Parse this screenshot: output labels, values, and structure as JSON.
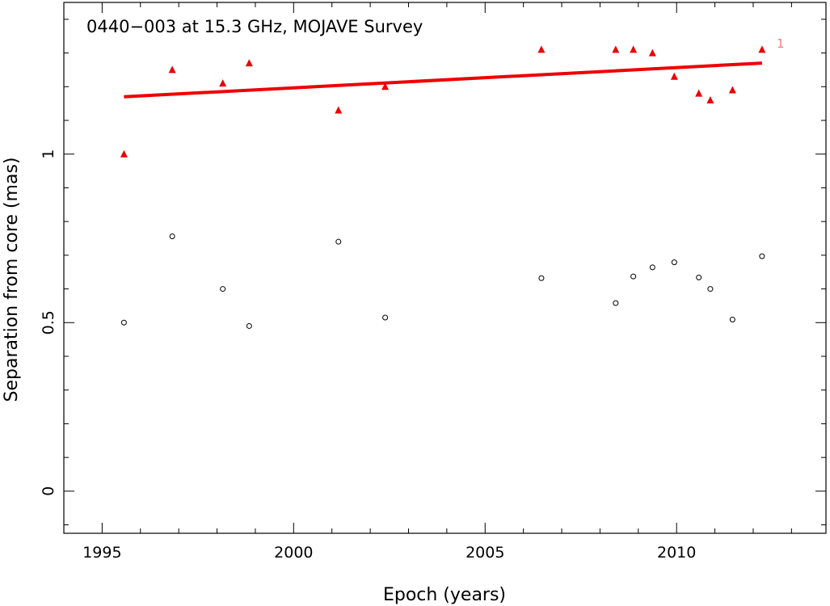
{
  "chart_data": {
    "type": "scatter",
    "title": "0440−003 at 15.3 GHz, MOJAVE Survey",
    "xlabel": "Epoch (years)",
    "ylabel": "Separation from core (mas)",
    "xlim": [
      1994.0,
      2013.9
    ],
    "ylim": [
      -0.125,
      1.45
    ],
    "xticks_major": [
      1995,
      2000,
      2005,
      2010
    ],
    "xtick_labels": [
      "1995",
      "2000",
      "2005",
      "2010"
    ],
    "yticks_major": [
      0,
      0.5,
      1
    ],
    "ytick_labels": [
      "0",
      "0.5",
      "1"
    ],
    "grid": false,
    "series": [
      {
        "name": "1",
        "marker": "triangle",
        "color": "#ee0000",
        "x": [
          1995.57,
          1996.83,
          1998.15,
          1998.84,
          2001.17,
          2002.39,
          2006.47,
          2008.41,
          2008.87,
          2009.37,
          2009.94,
          2010.58,
          2010.88,
          2011.46,
          2012.23
        ],
        "y": [
          1.0,
          1.25,
          1.21,
          1.27,
          1.13,
          1.2,
          1.31,
          1.31,
          1.31,
          1.3,
          1.23,
          1.18,
          1.16,
          1.19,
          1.31
        ]
      },
      {
        "name": "",
        "marker": "open-circle",
        "color": "#000000",
        "x": [
          1995.57,
          1996.83,
          1998.15,
          1998.84,
          2001.17,
          2002.39,
          2006.47,
          2008.41,
          2008.87,
          2009.37,
          2009.94,
          2010.58,
          2010.88,
          2011.46,
          2012.23
        ],
        "y": [
          0.5,
          0.756,
          0.6,
          0.49,
          0.74,
          0.515,
          0.632,
          0.558,
          0.637,
          0.664,
          0.679,
          0.634,
          0.6,
          0.509,
          0.697
        ]
      }
    ],
    "fit_line": {
      "color": "#ee0000",
      "x": [
        1995.57,
        2012.23
      ],
      "y": [
        1.17,
        1.27
      ],
      "label": "1"
    }
  }
}
